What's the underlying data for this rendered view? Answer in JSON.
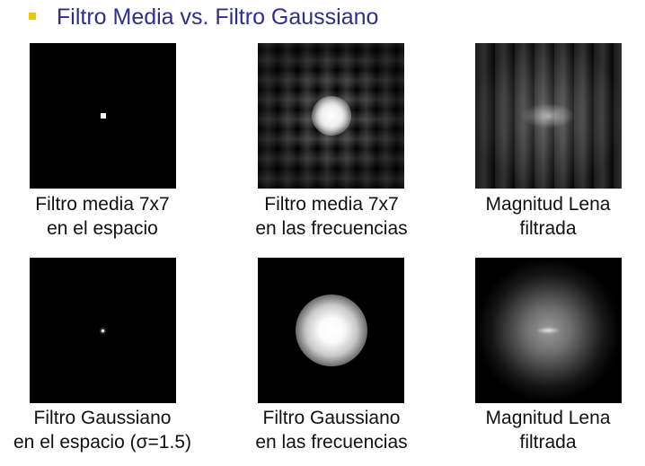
{
  "slide": {
    "title": "Filtro Media vs. Filtro Gaussiano",
    "bullet_color": "#f2c400",
    "title_color": "#2e2e8f"
  },
  "captions": {
    "media_espacio": [
      "Filtro media 7x7",
      "en el espacio"
    ],
    "media_frecuencias": [
      "Filtro media 7x7",
      "en las frecuencias"
    ],
    "lena_media": [
      "Magnitud Lena",
      "filtrada"
    ],
    "gauss_espacio": [
      "Filtro Gaussiano",
      "en el espacio (σ=1.5)"
    ],
    "gauss_frecuencias": [
      "Filtro Gaussiano",
      "en las frecuencias"
    ],
    "lena_gauss": [
      "Magnitud Lena",
      "filtrada"
    ]
  }
}
